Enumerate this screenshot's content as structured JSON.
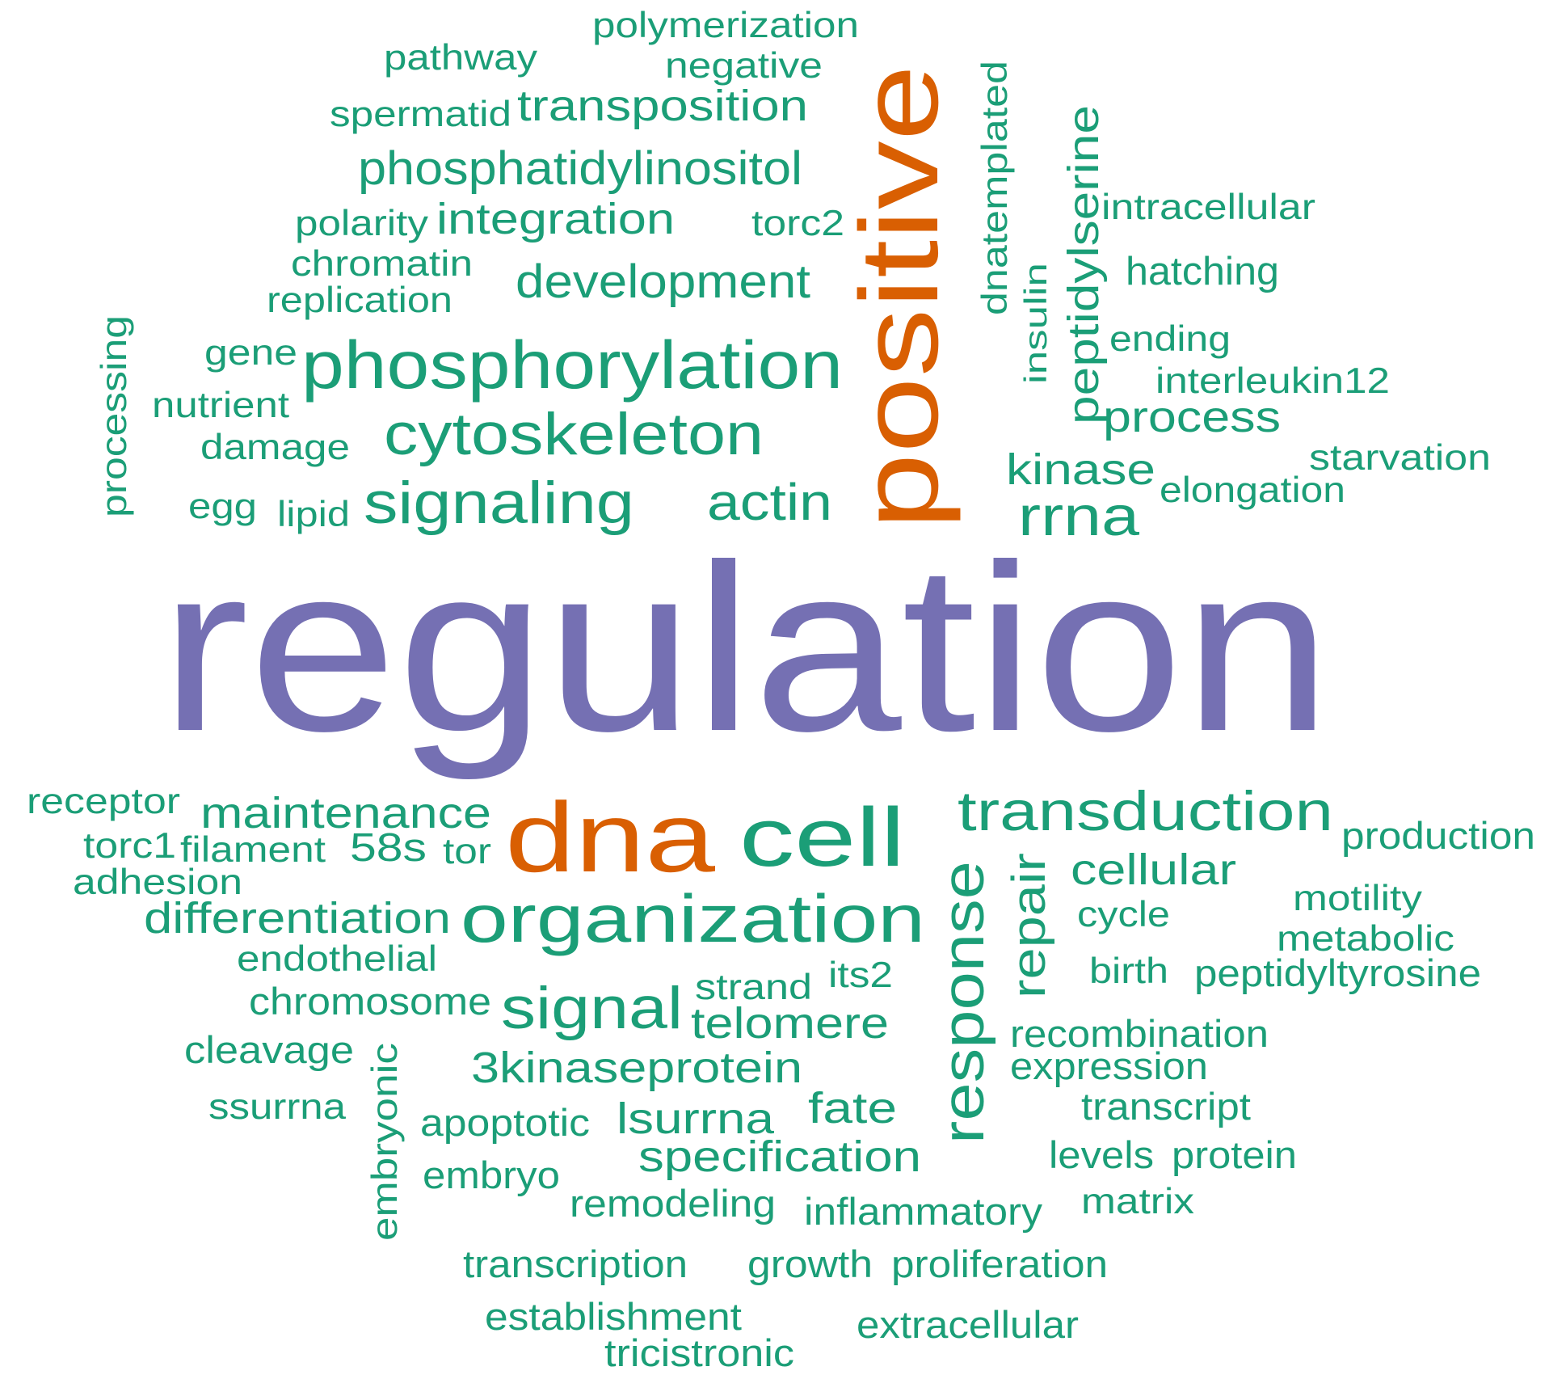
{
  "colors": {
    "teal": "#1b9e77",
    "orange": "#d95f02",
    "purple": "#7570b3",
    "background": "#ffffff"
  },
  "words": [
    {
      "text": "regulation",
      "color": "purple"
    },
    {
      "text": "positive",
      "color": "orange"
    },
    {
      "text": "dna",
      "color": "orange"
    },
    {
      "text": "cell",
      "color": "teal"
    },
    {
      "text": "organization",
      "color": "teal"
    },
    {
      "text": "transduction",
      "color": "teal"
    },
    {
      "text": "phosphorylation",
      "color": "teal"
    },
    {
      "text": "cytoskeleton",
      "color": "teal"
    },
    {
      "text": "signaling",
      "color": "teal"
    },
    {
      "text": "actin",
      "color": "teal"
    },
    {
      "text": "rrna",
      "color": "teal"
    },
    {
      "text": "signal",
      "color": "teal"
    },
    {
      "text": "response",
      "color": "teal"
    },
    {
      "text": "development",
      "color": "teal"
    },
    {
      "text": "phosphatidylinositol",
      "color": "teal"
    },
    {
      "text": "transposition",
      "color": "teal"
    },
    {
      "text": "integration",
      "color": "teal"
    },
    {
      "text": "kinase",
      "color": "teal"
    },
    {
      "text": "process",
      "color": "teal"
    },
    {
      "text": "peptidylserine",
      "color": "teal"
    },
    {
      "text": "maintenance",
      "color": "teal"
    },
    {
      "text": "differentiation",
      "color": "teal"
    },
    {
      "text": "58s",
      "color": "teal"
    },
    {
      "text": "cellular",
      "color": "teal"
    },
    {
      "text": "repair",
      "color": "teal"
    },
    {
      "text": "3kinaseprotein",
      "color": "teal"
    },
    {
      "text": "telomere",
      "color": "teal"
    },
    {
      "text": "specification",
      "color": "teal"
    },
    {
      "text": "lsurrna",
      "color": "teal"
    },
    {
      "text": "fate",
      "color": "teal"
    },
    {
      "text": "polymerization",
      "color": "teal"
    },
    {
      "text": "negative",
      "color": "teal"
    },
    {
      "text": "pathway",
      "color": "teal"
    },
    {
      "text": "spermatid",
      "color": "teal"
    },
    {
      "text": "polarity",
      "color": "teal"
    },
    {
      "text": "torc2",
      "color": "teal"
    },
    {
      "text": "chromatin",
      "color": "teal"
    },
    {
      "text": "replication",
      "color": "teal"
    },
    {
      "text": "gene",
      "color": "teal"
    },
    {
      "text": "nutrient",
      "color": "teal"
    },
    {
      "text": "damage",
      "color": "teal"
    },
    {
      "text": "egg",
      "color": "teal"
    },
    {
      "text": "lipid",
      "color": "teal"
    },
    {
      "text": "processing",
      "color": "teal"
    },
    {
      "text": "dnatemplated",
      "color": "teal"
    },
    {
      "text": "insulin",
      "color": "teal"
    },
    {
      "text": "intracellular",
      "color": "teal"
    },
    {
      "text": "hatching",
      "color": "teal"
    },
    {
      "text": "ending",
      "color": "teal"
    },
    {
      "text": "interleukin12",
      "color": "teal"
    },
    {
      "text": "starvation",
      "color": "teal"
    },
    {
      "text": "elongation",
      "color": "teal"
    },
    {
      "text": "receptor",
      "color": "teal"
    },
    {
      "text": "torc1",
      "color": "teal"
    },
    {
      "text": "filament",
      "color": "teal"
    },
    {
      "text": "tor",
      "color": "teal"
    },
    {
      "text": "adhesion",
      "color": "teal"
    },
    {
      "text": "endothelial",
      "color": "teal"
    },
    {
      "text": "chromosome",
      "color": "teal"
    },
    {
      "text": "cleavage",
      "color": "teal"
    },
    {
      "text": "ssurrna",
      "color": "teal"
    },
    {
      "text": "embryonic",
      "color": "teal"
    },
    {
      "text": "apoptotic",
      "color": "teal"
    },
    {
      "text": "embryo",
      "color": "teal"
    },
    {
      "text": "remodeling",
      "color": "teal"
    },
    {
      "text": "strand",
      "color": "teal"
    },
    {
      "text": "its2",
      "color": "teal"
    },
    {
      "text": "transcription",
      "color": "teal"
    },
    {
      "text": "establishment",
      "color": "teal"
    },
    {
      "text": "tricistronic",
      "color": "teal"
    },
    {
      "text": "growth",
      "color": "teal"
    },
    {
      "text": "proliferation",
      "color": "teal"
    },
    {
      "text": "extracellular",
      "color": "teal"
    },
    {
      "text": "inflammatory",
      "color": "teal"
    },
    {
      "text": "production",
      "color": "teal"
    },
    {
      "text": "motility",
      "color": "teal"
    },
    {
      "text": "metabolic",
      "color": "teal"
    },
    {
      "text": "cycle",
      "color": "teal"
    },
    {
      "text": "birth",
      "color": "teal"
    },
    {
      "text": "peptidyltyrosine",
      "color": "teal"
    },
    {
      "text": "recombination",
      "color": "teal"
    },
    {
      "text": "expression",
      "color": "teal"
    },
    {
      "text": "transcript",
      "color": "teal"
    },
    {
      "text": "levels",
      "color": "teal"
    },
    {
      "text": "protein",
      "color": "teal"
    },
    {
      "text": "matrix",
      "color": "teal"
    }
  ]
}
